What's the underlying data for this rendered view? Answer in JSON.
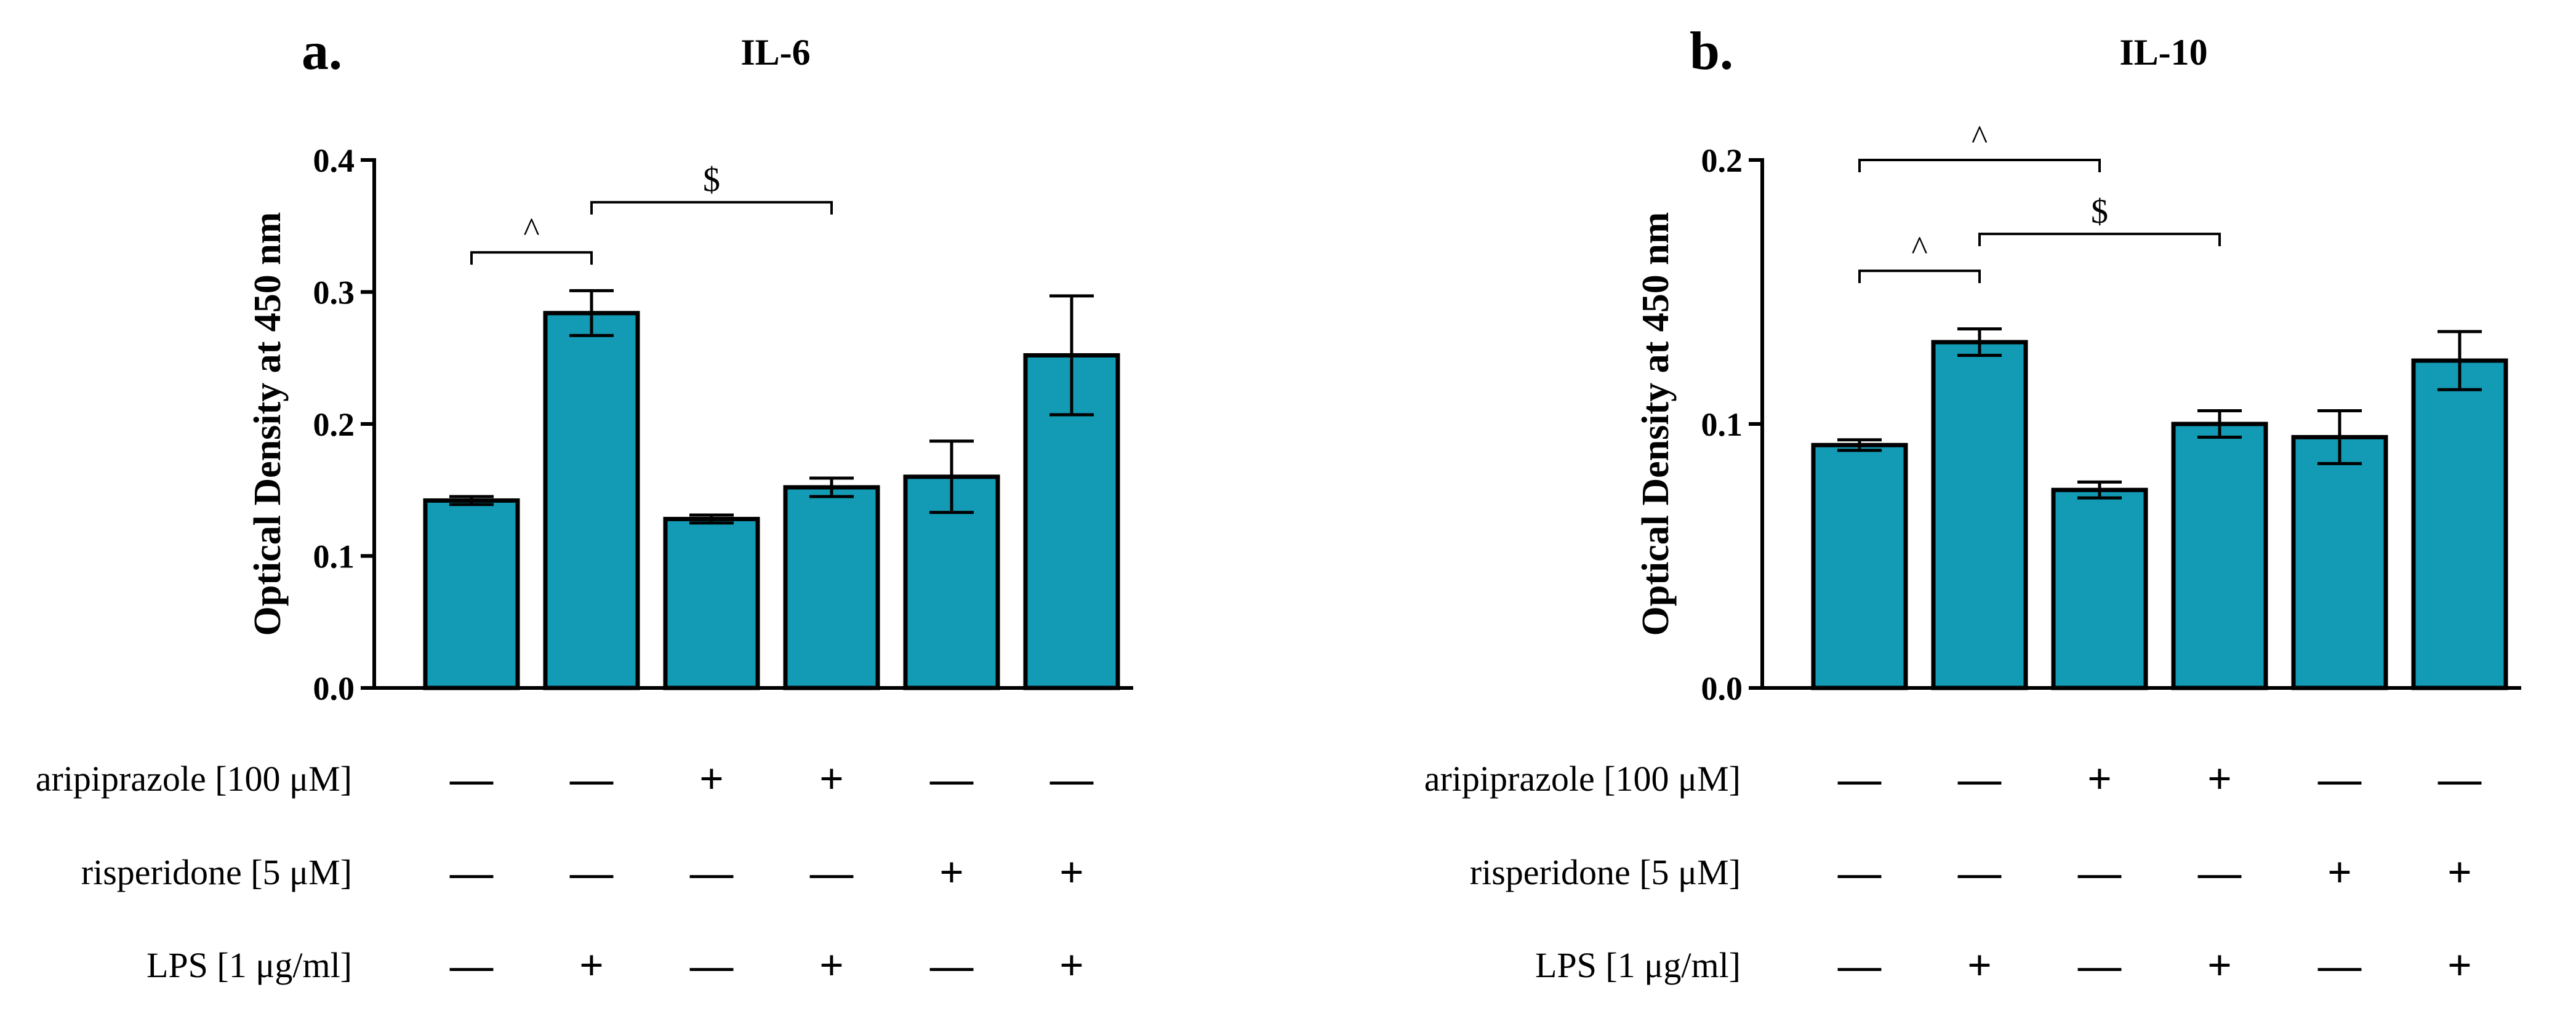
{
  "figure": {
    "bar_color": "#139bb5",
    "condition_labels": [
      "aripiprazole [100 μM]",
      "risperidone [5 μM]",
      "LPS [1 μg/ml]"
    ]
  },
  "chart_data": [
    {
      "type": "bar",
      "panel": "a.",
      "title": "IL-6",
      "xlabel": "",
      "ylabel": "Optical Density at 450 nm",
      "ylim": [
        0,
        0.4
      ],
      "yticks": [
        "0.0",
        "0.1",
        "0.2",
        "0.3",
        "0.4"
      ],
      "yticks_values": [
        0,
        0.1,
        0.2,
        0.3,
        0.4
      ],
      "grid": false,
      "values": [
        0.142,
        0.284,
        0.128,
        0.152,
        0.16,
        0.252
      ],
      "errors": [
        0.003,
        0.017,
        0.003,
        0.007,
        0.027,
        0.045
      ],
      "conditions": [
        [
          "—",
          "—",
          "+",
          "+",
          "—",
          "—"
        ],
        [
          "—",
          "—",
          "—",
          "—",
          "+",
          "+"
        ],
        [
          "—",
          "+",
          "—",
          "+",
          "—",
          "+"
        ]
      ],
      "significance": [
        {
          "from": 0,
          "to": 1,
          "symbol": "^",
          "y": 0.33
        },
        {
          "from": 1,
          "to": 3,
          "symbol": "$",
          "y": 0.368
        }
      ]
    },
    {
      "type": "bar",
      "panel": "b.",
      "title": "IL-10",
      "xlabel": "",
      "ylabel": "Optical Density at 450 nm",
      "ylim": [
        0,
        0.2
      ],
      "yticks": [
        "0.0",
        "0.1",
        "0.2"
      ],
      "yticks_values": [
        0,
        0.1,
        0.2
      ],
      "grid": false,
      "values": [
        0.092,
        0.131,
        0.075,
        0.1,
        0.095,
        0.124
      ],
      "errors": [
        0.002,
        0.005,
        0.003,
        0.005,
        0.01,
        0.011
      ],
      "conditions": [
        [
          "—",
          "—",
          "+",
          "+",
          "—",
          "—"
        ],
        [
          "—",
          "—",
          "—",
          "—",
          "+",
          "+"
        ],
        [
          "—",
          "+",
          "—",
          "+",
          "—",
          "+"
        ]
      ],
      "significance": [
        {
          "from": 0,
          "to": 2,
          "symbol": "^",
          "y": 0.2
        },
        {
          "from": 1,
          "to": 3,
          "symbol": "$",
          "y": 0.172
        },
        {
          "from": 0,
          "to": 1,
          "symbol": "^",
          "y": 0.158
        }
      ]
    }
  ]
}
